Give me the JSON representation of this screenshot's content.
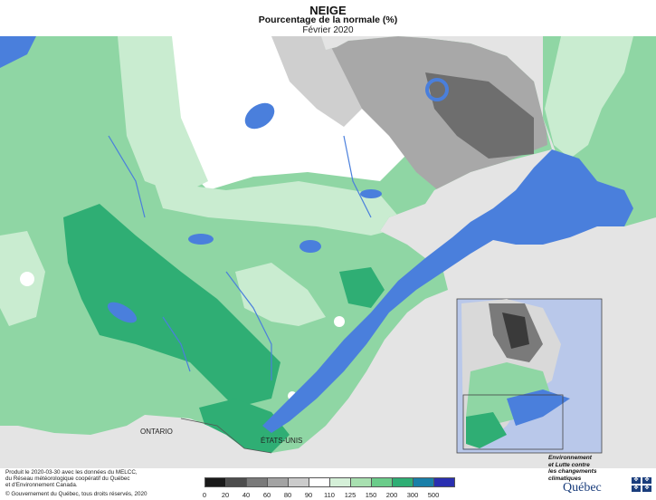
{
  "title": {
    "main": "NEIGE",
    "subtitle": "Pourcentage de la normale (%)",
    "date": "Février 2020"
  },
  "legend": {
    "ticks": [
      "0",
      "20",
      "40",
      "60",
      "80",
      "90",
      "110",
      "125",
      "150",
      "200",
      "300",
      "500"
    ],
    "colors": [
      "#1a1a1a",
      "#4d4d4d",
      "#7a7a7a",
      "#a3a3a3",
      "#cbcbcb",
      "#ffffff",
      "#d5f0d8",
      "#a8e0b0",
      "#6bcc8a",
      "#2fae74",
      "#1a7fa8",
      "#2a2fb0"
    ]
  },
  "labels": {
    "ontario": "ONTARIO",
    "usa": "ÉTATS-UNIS"
  },
  "credits": {
    "line1": "Produit le 2020-03-30 avec les données du MELCC,",
    "line2": "du Réseau météorologique coopératif du Québec",
    "line3": "et d'Environnement Canada.",
    "copyright": "© Gouvernement du Québec, tous droits réservés, 2020"
  },
  "ministry": {
    "line1": "Environnement",
    "line2": "et Lutte contre",
    "line3": "les changements",
    "line4": "climatiques",
    "logo": "Québec"
  },
  "colors": {
    "water": "#4a7fdc",
    "outside_land": "#e3e3e3",
    "map_bg": "#b9c8ea"
  }
}
